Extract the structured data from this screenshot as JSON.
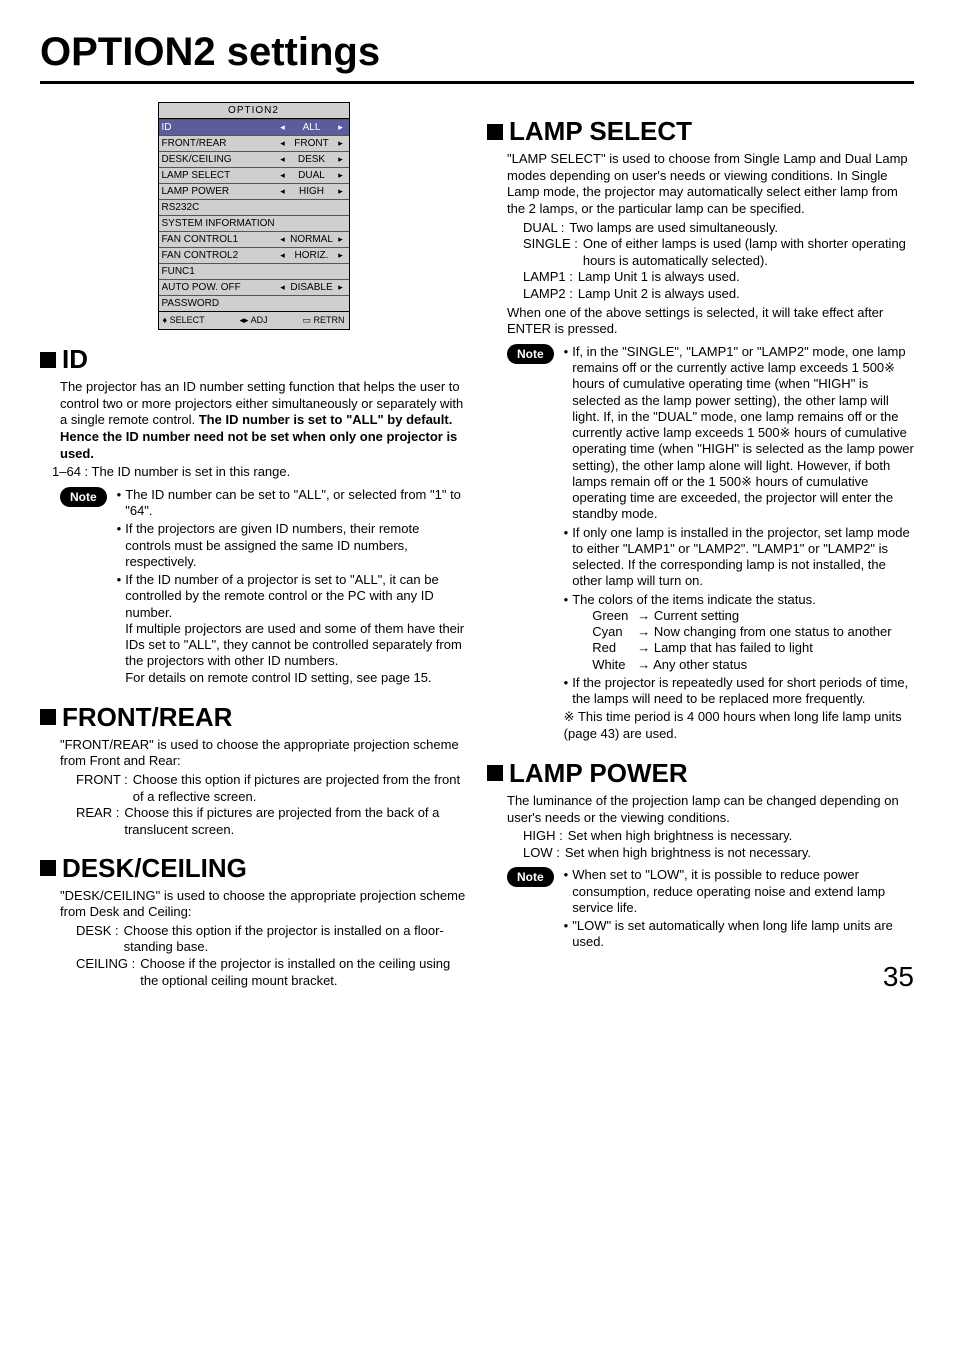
{
  "page_title": "OPTION2 settings",
  "page_number": "35",
  "menu": {
    "title": "OPTION2",
    "rows": [
      {
        "label": "ID",
        "val": "ALL",
        "selected": true,
        "arrows": true
      },
      {
        "label": "FRONT/REAR",
        "val": "FRONT",
        "arrows": true
      },
      {
        "label": "DESK/CEILING",
        "val": "DESK",
        "arrows": true
      },
      {
        "label": "LAMP SELECT",
        "val": "DUAL",
        "arrows": true
      },
      {
        "label": "LAMP POWER",
        "val": "HIGH",
        "arrows": true
      },
      {
        "label": "RS232C",
        "val": "",
        "arrows": false
      },
      {
        "label": "SYSTEM INFORMATION",
        "val": "",
        "arrows": false
      },
      {
        "label": "FAN CONTROL1",
        "val": "NORMAL",
        "arrows": true
      },
      {
        "label": "FAN CONTROL2",
        "val": "HORIZ.",
        "arrows": true
      },
      {
        "label": "FUNC1",
        "val": "",
        "arrows": false
      },
      {
        "label": "AUTO POW. OFF",
        "val": "DISABLE",
        "arrows": true
      },
      {
        "label": "PASSWORD",
        "val": "",
        "arrows": false
      }
    ],
    "footer": {
      "select": "SELECT",
      "adj": "ADJ",
      "retrn": "RETRN"
    }
  },
  "id_section": {
    "title": "ID",
    "intro1": "The projector has an ID number setting function that helps the user to control two or more projectors either simultaneously or separately with a single remote control. ",
    "intro_bold": "The ID number is set to \"ALL\" by default. Hence the ID number need not be set when only one projector is used.",
    "range": "1–64 : The ID number is set in this range.",
    "note_label": "Note",
    "note1": "The ID number can be set to \"ALL\", or selected from \"1\" to \"64\".",
    "note2": "If the projectors are given ID numbers, their remote controls must be assigned the same ID numbers, respectively.",
    "note3": "If the ID number of a projector is set to \"ALL\", it can be controlled by the remote control or the PC with any ID number.",
    "note3b": "If multiple projectors are used and some of them have their IDs set to \"ALL\", they cannot be controlled separately from the projectors with other ID numbers.",
    "note3c": "For details on remote control ID setting, see page 15."
  },
  "frontrear": {
    "title": "FRONT/REAR",
    "intro": "\"FRONT/REAR\" is used to choose the appropriate projection scheme from Front and Rear:",
    "front_t": "FRONT : ",
    "front_d": "Choose this option if pictures are projected from the front of a reflective screen.",
    "rear_t": "REAR   : ",
    "rear_d": "Choose this if pictures are projected from the back of a translucent screen."
  },
  "deskceiling": {
    "title": "DESK/CEILING",
    "intro": "\"DESK/CEILING\" is used to choose the appropriate projection scheme from Desk and Ceiling:",
    "desk_t": "DESK       : ",
    "desk_d": "Choose this option if the projector is installed on a floor-standing base.",
    "ceil_t": "CEILING  : ",
    "ceil_d": "Choose if the projector is installed on the ceiling using the optional ceiling mount bracket."
  },
  "lampselect": {
    "title": "LAMP SELECT",
    "intro": "\"LAMP SELECT\" is used to choose from Single Lamp and Dual Lamp modes depending on user's needs or viewing conditions. In Single Lamp mode, the projector may automatically select either lamp from the 2 lamps, or the particular lamp can be specified.",
    "dual_t": "DUAL     : ",
    "dual_d": "Two lamps are used simultaneously.",
    "single_t": "SINGLE : ",
    "single_d": "One of either lamps is used (lamp with shorter operating hours is automatically selected).",
    "lamp1_t": "LAMP1   : ",
    "lamp1_d": "Lamp Unit 1 is always used.",
    "lamp2_t": "LAMP2   : ",
    "lamp2_d": "Lamp Unit 2 is always used.",
    "after": "When one of the above settings is selected, it will take effect after ENTER is pressed.",
    "note_label": "Note",
    "note1": "If, in the \"SINGLE\", \"LAMP1\" or \"LAMP2\" mode, one lamp remains off or the currently active lamp exceeds 1 500※ hours of cumulative operating time (when \"HIGH\" is selected as the lamp power setting), the other lamp will light. If, in the \"DUAL\" mode, one lamp remains off or the currently active lamp exceeds 1 500※ hours of cumulative operating time (when \"HIGH\" is selected as the lamp power setting), the other lamp alone will light. However, if both lamps remain off or the 1 500※ hours of cumulative operating time are exceeded, the projector will enter the standby mode.",
    "note2": "If only one lamp is installed in the projector, set lamp mode to either \"LAMP1\" or \"LAMP2\". \"LAMP1\" or \"LAMP2\" is selected. If the corresponding lamp is not installed, the other lamp will turn on.",
    "note3": "The colors of the items indicate the status.",
    "c_green_t": "Green",
    "c_green_d": "→ Current setting",
    "c_cyan_t": "Cyan",
    "c_cyan_d": "→ Now changing from one status to another",
    "c_red_t": "Red",
    "c_red_d": "→ Lamp that has failed to light",
    "c_white_t": "White",
    "c_white_d": "→ Any other status",
    "note4": "If the projector is repeatedly used for short periods of time, the lamps will need to be replaced more frequently.",
    "note5": "※ This time period is 4 000 hours when long life lamp units (page 43) are used."
  },
  "lamppower": {
    "title": "LAMP POWER",
    "intro": "The luminance of the projection lamp can be changed depending on user's needs or the viewing conditions.",
    "high_t": "HIGH : ",
    "high_d": "Set when high brightness is necessary.",
    "low_t": "LOW  : ",
    "low_d": "Set when high brightness is not necessary.",
    "note_label": "Note",
    "note1": "When set to \"LOW\", it is possible to reduce power consumption, reduce operating noise and extend lamp service life.",
    "note2": "\"LOW\" is set automatically when long life lamp units are used."
  }
}
